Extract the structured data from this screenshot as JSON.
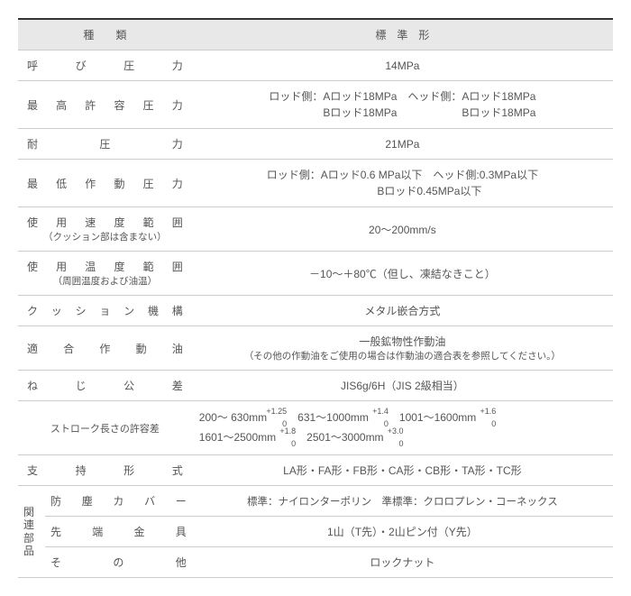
{
  "header": {
    "kind": "種　　類",
    "std": "標　準　形"
  },
  "rows": {
    "r1": {
      "label": "呼び圧力",
      "value": "14MPa"
    },
    "r2": {
      "label": "最高許容圧力",
      "value": "ロッド側：Aロッド18MPa　ヘッド側：Aロッド18MPa\n　　　　　Bロッド18MPa　　　　　　Bロッド18MPa"
    },
    "r3": {
      "label": "耐圧力",
      "value": "21MPa"
    },
    "r4": {
      "label": "最低作動圧力",
      "value": "ロッド側：Aロッド0.6 MPa以下　ヘッド側:0.3MPa以下\n　　　　　Bロッド0.45MPa以下"
    },
    "r5": {
      "label": "使用速度範囲",
      "sublabel": "（クッション部は含まない）",
      "value": "20～200mm/s"
    },
    "r6": {
      "label": "使用温度範囲",
      "sublabel": "（周囲温度および油温）",
      "value": "－10～＋80℃（但し、凍結なきこと）"
    },
    "r7": {
      "label": "クッション機構",
      "value": "メタル嵌合方式"
    },
    "r8": {
      "label": "適合作動油",
      "value": "一般鉱物性作動油",
      "valuesub": "（その他の作動油をご使用の場合は作動油の適合表を参照してください。）"
    },
    "r9": {
      "label": "ねじ公差",
      "value": "JIS6g/6H（JIS 2級相当）"
    },
    "r10": {
      "label": "ストローク長さの許容差",
      "tol": [
        {
          "range": "200～ 630mm",
          "up": "+1.25",
          "dn": "0"
        },
        {
          "range": "631～1000mm",
          "up": "+1.4",
          "dn": "0"
        },
        {
          "range": "1001～1600mm",
          "up": "+1.6",
          "dn": "0"
        },
        {
          "range": "1601～2500mm",
          "up": "+1.8",
          "dn": "0"
        },
        {
          "range": "2501～3000mm",
          "up": "+3.0",
          "dn": "0"
        }
      ]
    },
    "r11": {
      "label": "支持形式",
      "value": "LA形・FA形・FB形・CA形・CB形・TA形・TC形"
    },
    "r12": {
      "group": "関連部品",
      "items": [
        {
          "label": "防塵カバー",
          "value": "標準：ナイロンターポリン　準標準：クロロプレン・コーネックス"
        },
        {
          "label": "先端金具",
          "value": "1山（T先）・2山ピン付（Y先）"
        },
        {
          "label": "その他",
          "value": "ロックナット"
        }
      ]
    }
  }
}
